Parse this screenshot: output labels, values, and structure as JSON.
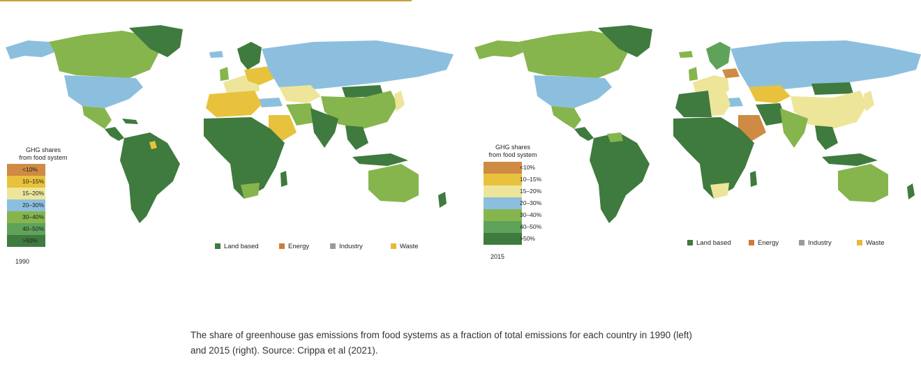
{
  "colors": {
    "lt10": "#cf8a43",
    "c10_15": "#e8c23c",
    "c15_20": "#ede59a",
    "c20_30": "#8cbfde",
    "c30_40": "#86b54d",
    "c40_50": "#5fa35a",
    "gt50": "#3f7a3e",
    "land_based": "#3f7a3e",
    "energy": "#cf7a3a",
    "industry": "#9a9a9a",
    "waste": "#e8b83a"
  },
  "maps": [
    {
      "id": "1990",
      "year": "1990",
      "scale_title_1": "GHG shares",
      "scale_title_2": "from food system",
      "bins": [
        "<10%",
        "10–15%",
        "15–20%",
        "20–30%",
        "30–40%",
        "40–50%",
        ">50%"
      ],
      "categories": [
        "Land based",
        "Energy",
        "Industry",
        "Waste"
      ]
    },
    {
      "id": "2015",
      "year": "2015",
      "scale_title_1": "GHG shares",
      "scale_title_2": "from food system",
      "bins": [
        "<10%",
        "10–15%",
        "15–20%",
        "20–30%",
        "30–40%",
        "40–50%",
        ">50%"
      ],
      "categories": [
        "Land based",
        "Energy",
        "Industry",
        "Waste"
      ]
    }
  ],
  "caption": {
    "line1": "The share of greenhouse gas emissions from food systems as a fraction of total emissions for each country in 1990 (left)",
    "line2": "and 2015 (right). Source: Crippa et al (2021)."
  }
}
